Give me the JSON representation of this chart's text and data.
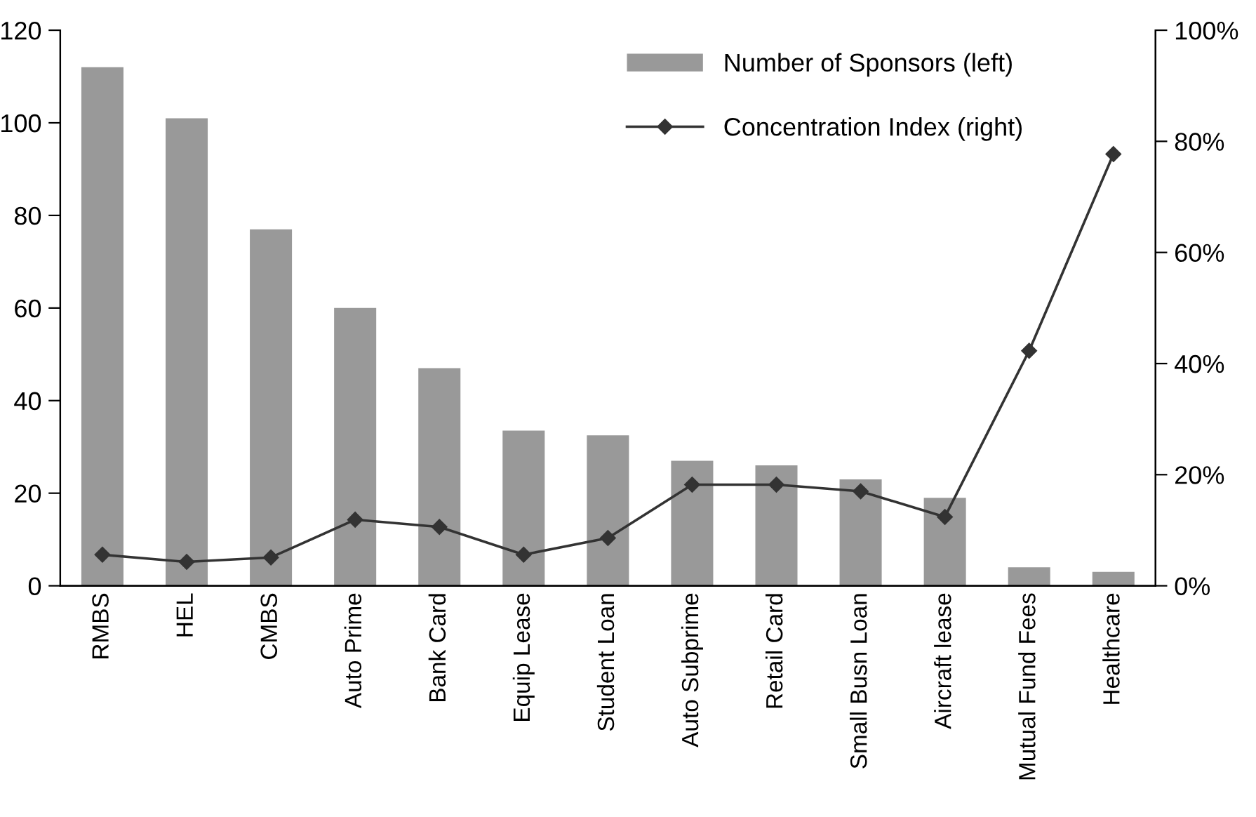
{
  "chart_data": {
    "type": "bar",
    "categories": [
      "RMBS",
      "HEL",
      "CMBS",
      "Auto Prime",
      "Bank Card",
      "Equip Lease",
      "Student Loan",
      "Auto Subprime",
      "Retail Card",
      "Small Busn Loan",
      "Aircraft lease",
      "Mutual Fund Fees",
      "Healthcare"
    ],
    "series": [
      {
        "name": "Number of Sponsors (left)",
        "color": "#999999",
        "values": [
          112,
          101,
          77,
          60,
          47,
          33.5,
          32.5,
          27,
          26,
          23,
          19,
          4,
          3
        ]
      },
      {
        "name": "Concentration Index (right)",
        "type": "line",
        "axis": "y2",
        "color": "#333333",
        "marker": "diamond",
        "line_style": "solid",
        "values": [
          5.6,
          4.3,
          5.1,
          11.9,
          10.6,
          5.6,
          8.6,
          18.2,
          18.2,
          17,
          12.4,
          42.3,
          77.7
        ]
      }
    ],
    "ylim": [
      0,
      120
    ],
    "yticks": [
      0,
      20,
      40,
      60,
      80,
      100,
      120
    ],
    "y2lim": [
      0,
      100
    ],
    "y2ticks": [
      {
        "value": 0,
        "label": "0%"
      },
      {
        "value": 20,
        "label": "20%"
      },
      {
        "value": 40,
        "label": "40%"
      },
      {
        "value": 60,
        "label": "60%"
      },
      {
        "value": 80,
        "label": "80%"
      },
      {
        "value": 100,
        "label": "100%"
      }
    ],
    "grid": false,
    "legend": "top right"
  }
}
